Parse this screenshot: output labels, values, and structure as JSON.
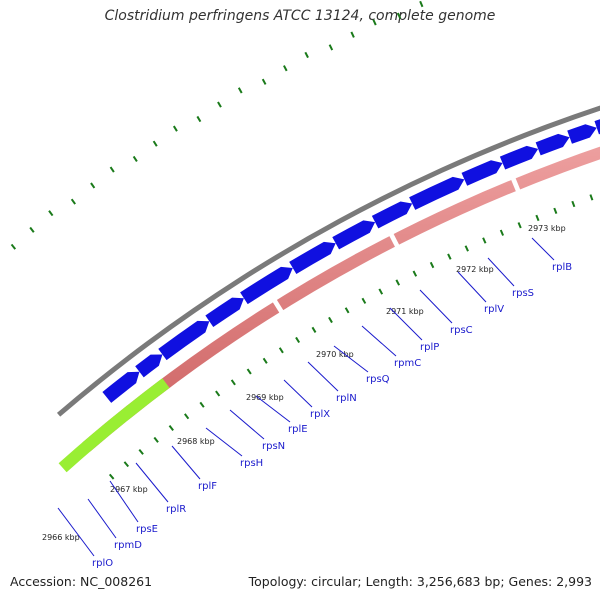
{
  "title": "Clostridium perfringens ATCC 13124, complete genome",
  "footer": {
    "accession": "Accession: NC_008261",
    "summary": "Topology: circular; Length: 3,256,683 bp; Genes: 2,993"
  },
  "colors": {
    "backbone": "#7a7a7a",
    "gene_forward": "#1010e0",
    "gene_reverse": "#ee8a8a",
    "other_feature": "#99ee33",
    "gc_ticks": "#1a7a1a",
    "label": "#1a1acc"
  },
  "ruler": {
    "labels": [
      "2966 kbp",
      "2967 kbp",
      "2968 kbp",
      "2969 kbp",
      "2970 kbp",
      "2971 kbp",
      "2972 kbp",
      "2973 kbp"
    ]
  },
  "gene_labels": [
    "rplO",
    "rpmD",
    "rpsE",
    "rplR",
    "rplF",
    "rpsH",
    "rpsN",
    "rplE",
    "rplX",
    "rplN",
    "rpsQ",
    "rpmC",
    "rplP",
    "rpsC",
    "rplV",
    "rpsS",
    "rplB"
  ]
}
